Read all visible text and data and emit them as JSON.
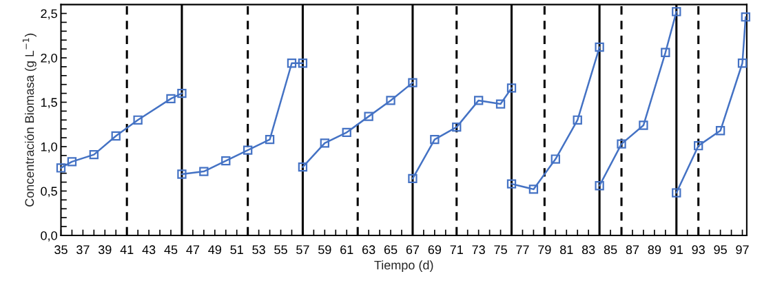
{
  "chart_data": {
    "type": "line",
    "xlabel": "Tiempo (d)",
    "ylabel": "Concentración Biomasa (g L$^{−1}$)",
    "xlim": [
      35,
      97.4
    ],
    "ylim": [
      0,
      2.6
    ],
    "xticks": [
      35,
      {
        "value": 36,
        "label": null
      },
      37,
      {
        "value": 38,
        "label": null
      },
      39,
      {
        "value": 40,
        "label": null
      },
      41,
      {
        "value": 42,
        "label": null
      },
      43,
      {
        "value": 44,
        "label": null
      },
      45,
      {
        "value": 46,
        "label": null
      },
      47,
      {
        "value": 48,
        "label": null
      },
      49,
      {
        "value": 50,
        "label": null
      },
      51,
      {
        "value": 52,
        "label": null
      },
      53,
      {
        "value": 54,
        "label": null
      },
      55,
      {
        "value": 56,
        "label": null
      },
      57,
      {
        "value": 58,
        "label": null
      },
      59,
      {
        "value": 60,
        "label": null
      },
      61,
      {
        "value": 62,
        "label": null
      },
      63,
      {
        "value": 64,
        "label": null
      },
      65,
      {
        "value": 66,
        "label": null
      },
      67,
      {
        "value": 68,
        "label": null
      },
      69,
      {
        "value": 70,
        "label": null
      },
      71,
      {
        "value": 72,
        "label": null
      },
      73,
      {
        "value": 74,
        "label": null
      },
      75,
      {
        "value": 76,
        "label": null
      },
      77,
      {
        "value": 78,
        "label": null
      },
      79,
      {
        "value": 80,
        "label": null
      },
      81,
      {
        "value": 82,
        "label": null
      },
      83,
      {
        "value": 84,
        "label": null
      },
      85,
      {
        "value": 86,
        "label": null
      },
      87,
      {
        "value": 88,
        "label": null
      },
      89,
      {
        "value": 90,
        "label": null
      },
      91,
      {
        "value": 92,
        "label": null
      },
      93,
      {
        "value": 94,
        "label": null
      },
      95,
      {
        "value": 96,
        "label": null
      },
      97
    ],
    "yticks": [
      {
        "value": 0,
        "label": "0,0"
      },
      {
        "value": 0.1,
        "label": null
      },
      {
        "value": 0.2,
        "label": null
      },
      {
        "value": 0.3,
        "label": null
      },
      {
        "value": 0.4,
        "label": null
      },
      {
        "value": 0.5,
        "label": "0,5"
      },
      {
        "value": 0.6,
        "label": null
      },
      {
        "value": 0.7,
        "label": null
      },
      {
        "value": 0.8,
        "label": null
      },
      {
        "value": 0.9,
        "label": null
      },
      {
        "value": 1.0,
        "label": "1,0"
      },
      {
        "value": 1.1,
        "label": null
      },
      {
        "value": 1.2,
        "label": null
      },
      {
        "value": 1.3,
        "label": null
      },
      {
        "value": 1.4,
        "label": null
      },
      {
        "value": 1.5,
        "label": "1,5"
      },
      {
        "value": 1.6,
        "label": null
      },
      {
        "value": 1.7,
        "label": null
      },
      {
        "value": 1.8,
        "label": null
      },
      {
        "value": 1.9,
        "label": null
      },
      {
        "value": 2.0,
        "label": "2,0"
      },
      {
        "value": 2.1,
        "label": null
      },
      {
        "value": 2.2,
        "label": null
      },
      {
        "value": 2.3,
        "label": null
      },
      {
        "value": 2.4,
        "label": null
      },
      {
        "value": 2.5,
        "label": "2,5"
      }
    ],
    "marker": "square",
    "line_style": "solid",
    "grid": false,
    "series": [
      {
        "color": "#4472c4",
        "x": [
          35,
          36,
          38,
          40,
          42,
          45,
          46
        ],
        "values": [
          0.76,
          0.83,
          0.91,
          1.12,
          1.3,
          1.54,
          1.6
        ]
      },
      {
        "color": "#4472c4",
        "x": [
          46,
          48,
          50,
          52,
          54,
          56,
          57
        ],
        "values": [
          0.69,
          0.72,
          0.84,
          0.96,
          1.08,
          1.94,
          1.94
        ]
      },
      {
        "color": "#4472c4",
        "x": [
          57,
          59,
          61,
          63,
          65,
          67
        ],
        "values": [
          0.77,
          1.04,
          1.16,
          1.34,
          1.52,
          1.72
        ]
      },
      {
        "color": "#4472c4",
        "x": [
          67,
          69,
          71,
          73,
          75,
          76
        ],
        "values": [
          0.64,
          1.08,
          1.22,
          1.52,
          1.48,
          1.66
        ]
      },
      {
        "color": "#4472c4",
        "x": [
          76,
          78,
          80,
          82,
          84
        ],
        "values": [
          0.58,
          0.52,
          0.86,
          1.3,
          2.12
        ]
      },
      {
        "color": "#4472c4",
        "x": [
          84,
          86,
          88,
          90,
          91
        ],
        "values": [
          0.56,
          1.03,
          1.24,
          2.06,
          2.52
        ]
      },
      {
        "color": "#4472c4",
        "x": [
          91,
          93,
          95,
          97,
          97.3
        ],
        "values": [
          0.48,
          1.01,
          1.18,
          1.94,
          2.46
        ]
      }
    ],
    "ref_lines": [
      {
        "axis": "x",
        "value": 41,
        "color": "#000000",
        "line_style": "dashed"
      },
      {
        "axis": "x",
        "value": 46,
        "color": "#000000",
        "line_style": "solid"
      },
      {
        "axis": "x",
        "value": 52,
        "color": "#000000",
        "line_style": "dashed"
      },
      {
        "axis": "x",
        "value": 57,
        "color": "#000000",
        "line_style": "solid"
      },
      {
        "axis": "x",
        "value": 62,
        "color": "#000000",
        "line_style": "dashed"
      },
      {
        "axis": "x",
        "value": 67,
        "color": "#000000",
        "line_style": "solid"
      },
      {
        "axis": "x",
        "value": 71,
        "color": "#000000",
        "line_style": "dashed"
      },
      {
        "axis": "x",
        "value": 76,
        "color": "#000000",
        "line_style": "solid"
      },
      {
        "axis": "x",
        "value": 79,
        "color": "#000000",
        "line_style": "dashed"
      },
      {
        "axis": "x",
        "value": 84,
        "color": "#000000",
        "line_style": "solid"
      },
      {
        "axis": "x",
        "value": 86,
        "color": "#000000",
        "line_style": "dashed"
      },
      {
        "axis": "x",
        "value": 91,
        "color": "#000000",
        "line_style": "solid"
      },
      {
        "axis": "x",
        "value": 93,
        "color": "#000000",
        "line_style": "dashed"
      }
    ]
  }
}
